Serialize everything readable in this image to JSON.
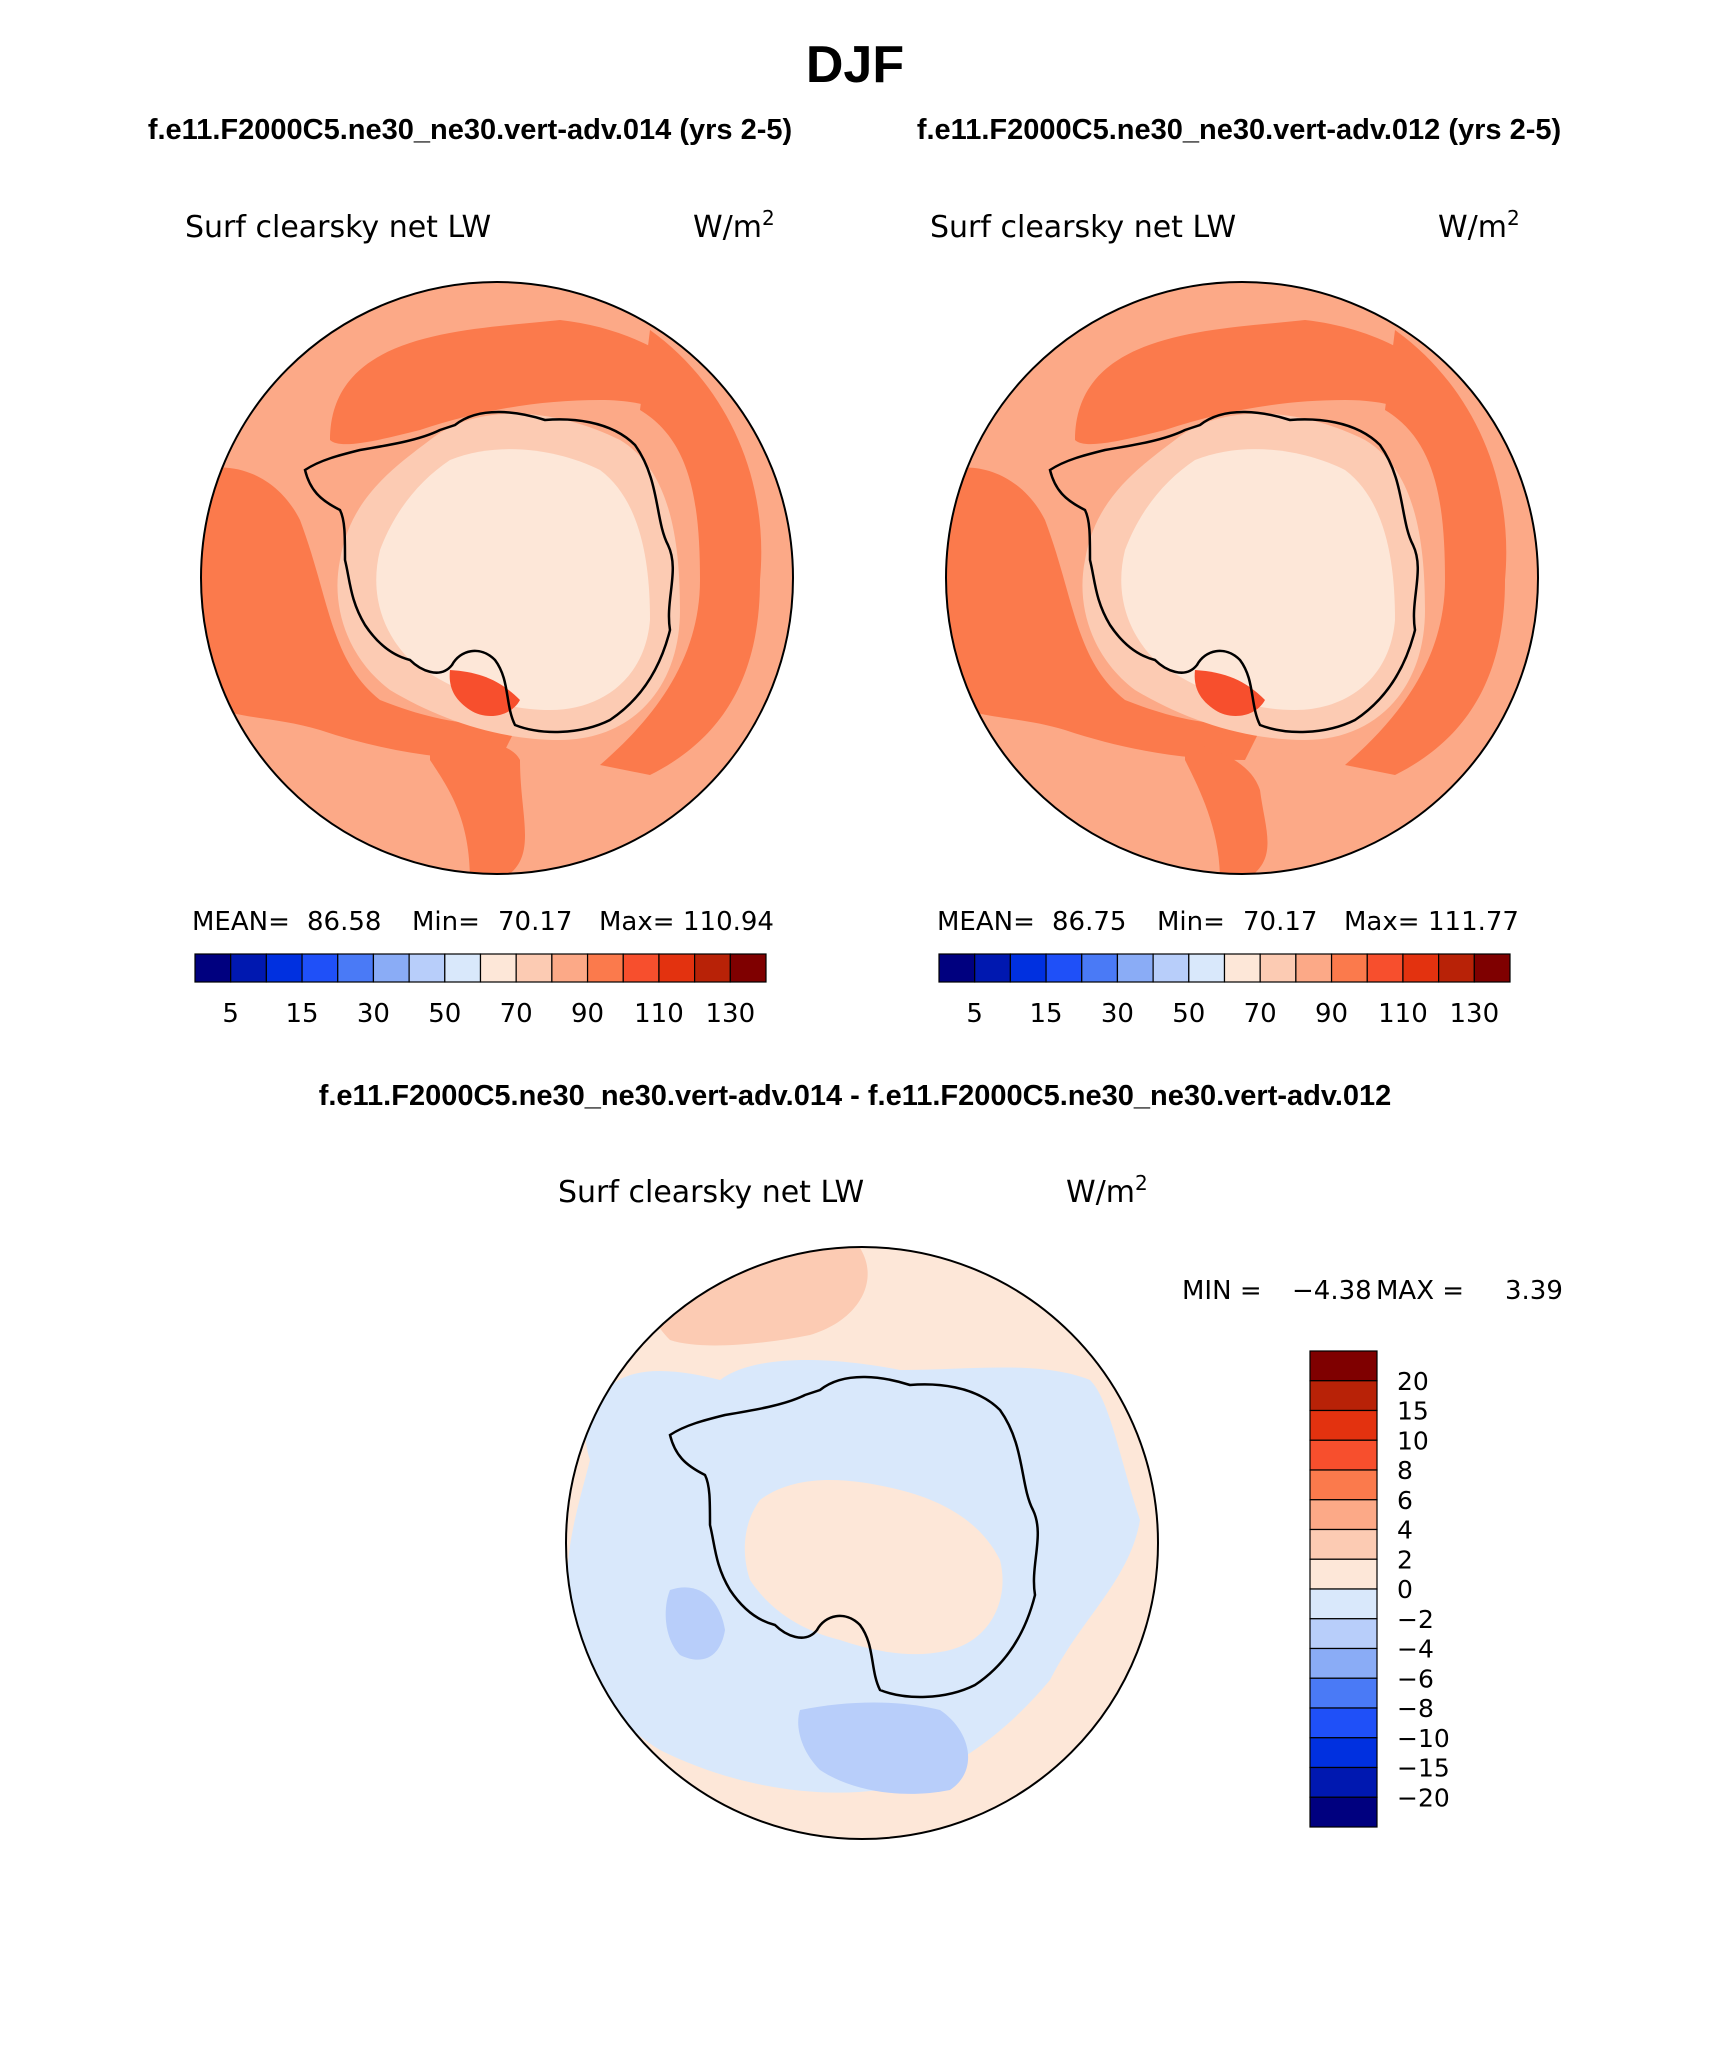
{
  "page": {
    "season": "DJF",
    "case_a": "f.e11.F2000C5.ne30_ne30.vert-adv.014 (yrs 2-5)",
    "case_b": "f.e11.F2000C5.ne30_ne30.vert-adv.012 (yrs 2-5)",
    "diff_title": "f.e11.F2000C5.ne30_ne30.vert-adv.014 - f.e11.F2000C5.ne30_ne30.vert-adv.012"
  },
  "colors": {
    "abs_levels": [
      "#00007f",
      "#0018b0",
      "#0030e0",
      "#1f50f8",
      "#4a7af6",
      "#8aacf6",
      "#b8cefa",
      "#d9e8fb",
      "#fde7d8",
      "#fccbb3",
      "#fca987",
      "#fb7a4c",
      "#f74f2d",
      "#e3320f",
      "#b82207",
      "#7f0000"
    ],
    "diff_levels": [
      "#7f0000",
      "#b82207",
      "#e3320f",
      "#f74f2d",
      "#fb7a4c",
      "#fca987",
      "#fccbb3",
      "#fde7d8",
      "#d9e8fb",
      "#b8cefa",
      "#8aacf6",
      "#4a7af6",
      "#1f50f8",
      "#0030e0",
      "#0018b0",
      "#00007f"
    ]
  },
  "chart_data": [
    {
      "type": "heatmap",
      "projection": "south-polar-stereographic",
      "title": "Surf clearsky net LW",
      "units": "W/m",
      "units_sup": "2",
      "stats": {
        "mean_label": "MEAN=",
        "mean": "86.58",
        "min_label": "Min=",
        "min": "70.17",
        "max_label": "Max=",
        "max": "110.94"
      },
      "colorbar_ticks": [
        "5",
        "15",
        "30",
        "50",
        "70",
        "90",
        "110",
        "130"
      ]
    },
    {
      "type": "heatmap",
      "projection": "south-polar-stereographic",
      "title": "Surf clearsky net LW",
      "units": "W/m",
      "units_sup": "2",
      "stats": {
        "mean_label": "MEAN=",
        "mean": "86.75",
        "min_label": "Min=",
        "min": "70.17",
        "max_label": "Max=",
        "max": "111.77"
      },
      "colorbar_ticks": [
        "5",
        "15",
        "30",
        "50",
        "70",
        "90",
        "110",
        "130"
      ]
    },
    {
      "type": "heatmap",
      "projection": "south-polar-stereographic",
      "title": "Surf clearsky net LW",
      "units": "W/m",
      "units_sup": "2",
      "stats": {
        "min_label": "MIN =",
        "min": "−4.38",
        "max_label": "MAX =",
        "max": "3.39"
      },
      "colorbar_ticks": [
        "20",
        "15",
        "10",
        "8",
        "6",
        "4",
        "2",
        "0",
        "−2",
        "−4",
        "−6",
        "−8",
        "−10",
        "−15",
        "−20"
      ]
    }
  ]
}
